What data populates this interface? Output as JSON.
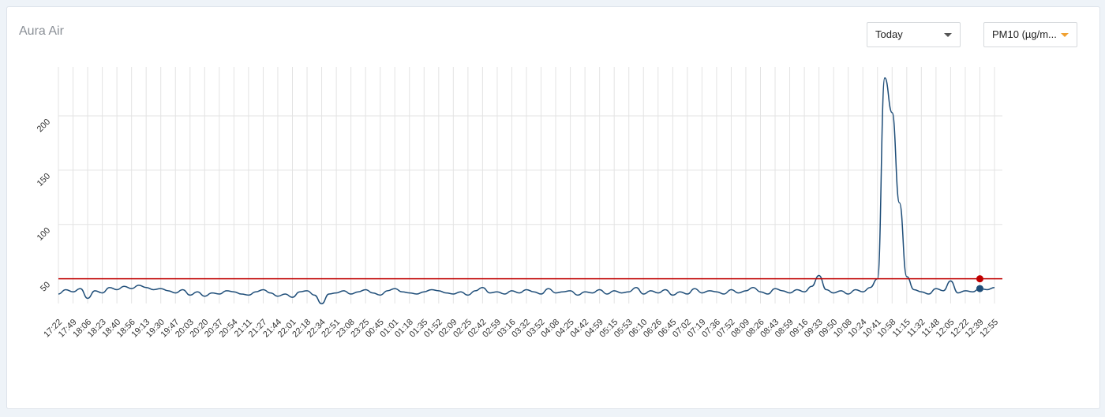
{
  "header": {
    "title": "Aura Air"
  },
  "controls": {
    "period": "Today",
    "metric": "PM10 (µg/m..."
  },
  "chart_data": {
    "type": "line",
    "categories": [
      "17:22",
      null,
      "17:49",
      null,
      "18:06",
      null,
      "18:23",
      null,
      "18:40",
      null,
      "18:56",
      null,
      "19:13",
      null,
      "19:30",
      null,
      "19:47",
      null,
      "20:03",
      null,
      "20:20",
      null,
      "20:37",
      null,
      "20:54",
      null,
      "21:11",
      null,
      "21:27",
      null,
      "21:44",
      null,
      "22:01",
      null,
      "22:18",
      null,
      "22:34",
      null,
      "22:51",
      null,
      "23:08",
      null,
      "23:25",
      null,
      "00:45",
      null,
      "01:01",
      null,
      "01:18",
      null,
      "01:35",
      null,
      "01:52",
      null,
      "02:09",
      null,
      "02:25",
      null,
      "02:42",
      null,
      "02:59",
      null,
      "03:16",
      null,
      "03:32",
      null,
      "03:52",
      null,
      "04:08",
      null,
      "04:25",
      null,
      "04:42",
      null,
      "04:59",
      null,
      "05:15",
      null,
      "05:53",
      null,
      "06:10",
      null,
      "06:26",
      null,
      "06:45",
      null,
      "07:02",
      null,
      "07:19",
      null,
      "07:36",
      null,
      "07:52",
      null,
      "08:09",
      null,
      "08:26",
      null,
      "08:43",
      null,
      "08:59",
      null,
      "09:16",
      null,
      "09:33",
      null,
      "09:50",
      null,
      "10:08",
      null,
      "10:24",
      null,
      "10:41",
      null,
      "10:58",
      null,
      "11:15",
      null,
      "11:32",
      null,
      "11:48",
      null,
      "12:05",
      null,
      "12:22",
      null,
      "12:39",
      null,
      "12:55"
    ],
    "series": [
      {
        "color": "#1f4e79",
        "values": [
          36,
          40,
          38,
          41,
          32,
          39,
          37,
          42,
          40,
          43,
          41,
          44,
          42,
          40,
          41,
          39,
          37,
          40,
          35,
          38,
          34,
          37,
          36,
          39,
          38,
          36,
          35,
          38,
          40,
          37,
          34,
          36,
          33,
          38,
          39,
          35,
          27,
          36,
          37,
          39,
          36,
          38,
          40,
          37,
          35,
          39,
          41,
          38,
          37,
          36,
          38,
          40,
          39,
          37,
          36,
          38,
          35,
          39,
          42,
          37,
          38,
          36,
          39,
          37,
          40,
          38,
          36,
          41,
          37,
          38,
          39,
          35,
          38,
          37,
          40,
          36,
          39,
          37,
          38,
          42,
          36,
          39,
          37,
          40,
          35,
          38,
          36,
          41,
          37,
          39,
          38,
          36,
          40,
          37,
          39,
          42,
          38,
          36,
          41,
          39,
          37,
          40,
          38,
          43,
          53,
          40,
          37,
          39,
          36,
          40,
          38,
          42,
          50,
          235,
          203,
          120,
          52,
          40,
          38,
          36,
          41,
          39,
          48,
          37,
          39,
          38,
          41,
          40,
          42
        ]
      }
    ],
    "threshold": {
      "value": 50,
      "color": "#c00000"
    },
    "ylim": [
      20,
      245
    ],
    "yticks": [
      50,
      100,
      150,
      200
    ],
    "grid": true
  }
}
